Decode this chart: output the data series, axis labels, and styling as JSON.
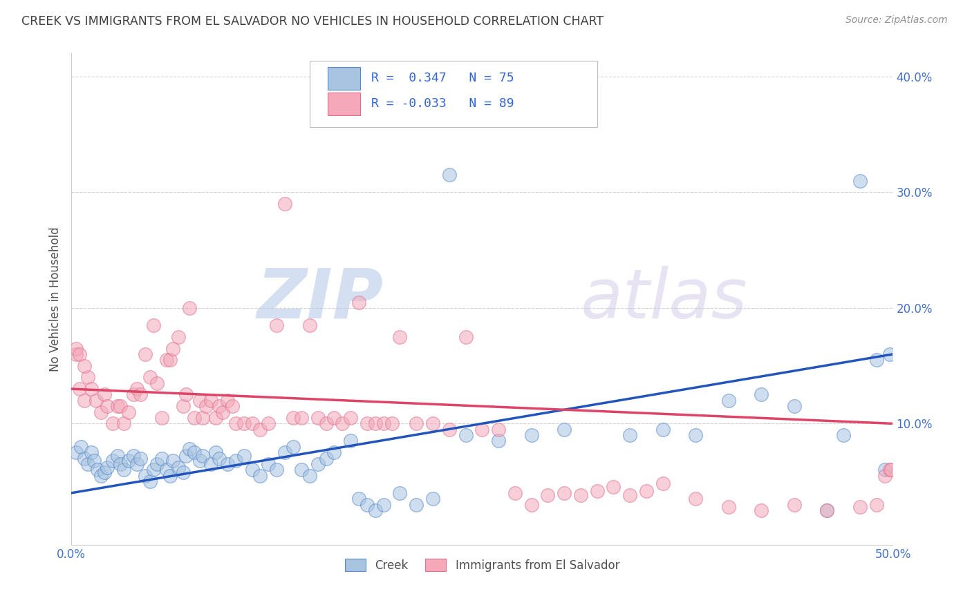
{
  "title": "CREEK VS IMMIGRANTS FROM EL SALVADOR NO VEHICLES IN HOUSEHOLD CORRELATION CHART",
  "source": "Source: ZipAtlas.com",
  "ylabel": "No Vehicles in Household",
  "xlim": [
    0.0,
    0.5
  ],
  "ylim": [
    -0.005,
    0.42
  ],
  "xticks": [
    0.0,
    0.5
  ],
  "xticklabels": [
    "0.0%",
    "50.0%"
  ],
  "yticks": [
    0.1,
    0.2,
    0.3,
    0.4
  ],
  "yticklabels": [
    "10.0%",
    "20.0%",
    "30.0%",
    "40.0%"
  ],
  "legend_labels": [
    "Creek",
    "Immigrants from El Salvador"
  ],
  "creek_color": "#a8c4e0",
  "salvador_color": "#f4a8b8",
  "creek_edge_color": "#5588cc",
  "salvador_edge_color": "#e07090",
  "creek_line_color": "#2255bb",
  "salvador_line_color": "#dd4466",
  "creek_R": 0.347,
  "creek_N": 75,
  "salvador_R": -0.033,
  "salvador_N": 89,
  "watermark_zip": "ZIP",
  "watermark_atlas": "atlas",
  "background_color": "#ffffff",
  "grid_color": "#cccccc",
  "title_color": "#404040",
  "axis_color": "#4472c4",
  "creek_line_y0": 0.04,
  "creek_line_y1": 0.16,
  "salvador_line_y0": 0.13,
  "salvador_line_y1": 0.1,
  "creek_scatter_x": [
    0.003,
    0.006,
    0.008,
    0.01,
    0.012,
    0.014,
    0.016,
    0.018,
    0.02,
    0.022,
    0.025,
    0.028,
    0.03,
    0.032,
    0.035,
    0.038,
    0.04,
    0.042,
    0.045,
    0.048,
    0.05,
    0.052,
    0.055,
    0.058,
    0.06,
    0.062,
    0.065,
    0.068,
    0.07,
    0.072,
    0.075,
    0.078,
    0.08,
    0.085,
    0.088,
    0.09,
    0.095,
    0.1,
    0.105,
    0.11,
    0.115,
    0.12,
    0.125,
    0.13,
    0.135,
    0.14,
    0.145,
    0.15,
    0.155,
    0.16,
    0.17,
    0.175,
    0.18,
    0.185,
    0.19,
    0.2,
    0.21,
    0.22,
    0.23,
    0.24,
    0.26,
    0.28,
    0.3,
    0.34,
    0.36,
    0.38,
    0.4,
    0.42,
    0.44,
    0.46,
    0.47,
    0.48,
    0.49,
    0.495,
    0.498
  ],
  "creek_scatter_y": [
    0.075,
    0.08,
    0.07,
    0.065,
    0.075,
    0.068,
    0.06,
    0.055,
    0.058,
    0.062,
    0.068,
    0.072,
    0.065,
    0.06,
    0.068,
    0.072,
    0.065,
    0.07,
    0.055,
    0.05,
    0.06,
    0.065,
    0.07,
    0.06,
    0.055,
    0.068,
    0.062,
    0.058,
    0.072,
    0.078,
    0.075,
    0.068,
    0.072,
    0.065,
    0.075,
    0.07,
    0.065,
    0.068,
    0.072,
    0.06,
    0.055,
    0.065,
    0.06,
    0.075,
    0.08,
    0.06,
    0.055,
    0.065,
    0.07,
    0.075,
    0.085,
    0.035,
    0.03,
    0.025,
    0.03,
    0.04,
    0.03,
    0.035,
    0.315,
    0.09,
    0.085,
    0.09,
    0.095,
    0.09,
    0.095,
    0.09,
    0.12,
    0.125,
    0.115,
    0.025,
    0.09,
    0.31,
    0.155,
    0.06,
    0.16
  ],
  "salvador_scatter_x": [
    0.003,
    0.005,
    0.008,
    0.01,
    0.012,
    0.015,
    0.018,
    0.02,
    0.022,
    0.025,
    0.028,
    0.03,
    0.032,
    0.035,
    0.038,
    0.04,
    0.042,
    0.045,
    0.048,
    0.05,
    0.052,
    0.055,
    0.058,
    0.06,
    0.062,
    0.065,
    0.068,
    0.07,
    0.072,
    0.075,
    0.078,
    0.08,
    0.082,
    0.085,
    0.088,
    0.09,
    0.092,
    0.095,
    0.098,
    0.1,
    0.105,
    0.11,
    0.115,
    0.12,
    0.125,
    0.13,
    0.135,
    0.14,
    0.145,
    0.15,
    0.155,
    0.16,
    0.165,
    0.17,
    0.175,
    0.18,
    0.185,
    0.19,
    0.195,
    0.2,
    0.21,
    0.22,
    0.23,
    0.24,
    0.25,
    0.26,
    0.27,
    0.28,
    0.29,
    0.3,
    0.31,
    0.32,
    0.33,
    0.34,
    0.35,
    0.36,
    0.38,
    0.4,
    0.42,
    0.44,
    0.46,
    0.48,
    0.49,
    0.495,
    0.498,
    0.499,
    0.003,
    0.005,
    0.008
  ],
  "salvador_scatter_y": [
    0.16,
    0.13,
    0.12,
    0.14,
    0.13,
    0.12,
    0.11,
    0.125,
    0.115,
    0.1,
    0.115,
    0.115,
    0.1,
    0.11,
    0.125,
    0.13,
    0.125,
    0.16,
    0.14,
    0.185,
    0.135,
    0.105,
    0.155,
    0.155,
    0.165,
    0.175,
    0.115,
    0.125,
    0.2,
    0.105,
    0.12,
    0.105,
    0.115,
    0.12,
    0.105,
    0.115,
    0.11,
    0.12,
    0.115,
    0.1,
    0.1,
    0.1,
    0.095,
    0.1,
    0.185,
    0.29,
    0.105,
    0.105,
    0.185,
    0.105,
    0.1,
    0.105,
    0.1,
    0.105,
    0.205,
    0.1,
    0.1,
    0.1,
    0.1,
    0.175,
    0.1,
    0.1,
    0.095,
    0.175,
    0.095,
    0.095,
    0.04,
    0.03,
    0.038,
    0.04,
    0.038,
    0.042,
    0.045,
    0.038,
    0.042,
    0.048,
    0.035,
    0.028,
    0.025,
    0.03,
    0.025,
    0.028,
    0.03,
    0.055,
    0.06,
    0.06,
    0.165,
    0.16,
    0.15
  ]
}
